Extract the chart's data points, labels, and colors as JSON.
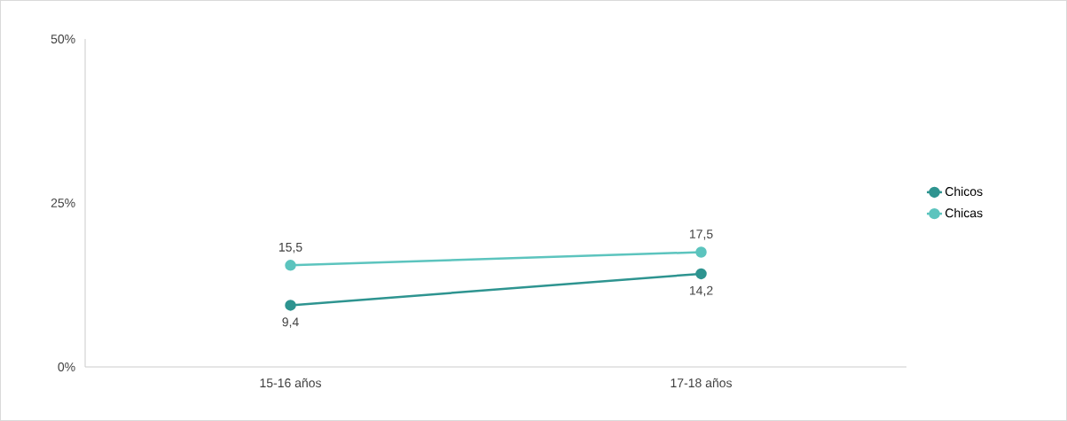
{
  "chart_data": {
    "type": "line",
    "categories": [
      "15-16 años",
      "17-18 años"
    ],
    "series": [
      {
        "name": "Chicos",
        "color": "#2e9490",
        "values": [
          9.4,
          14.2
        ],
        "value_labels": [
          "9,4",
          "14,2"
        ]
      },
      {
        "name": "Chicas",
        "color": "#5cc4be",
        "values": [
          15.5,
          17.5
        ],
        "value_labels": [
          "15,5",
          "17,5"
        ]
      }
    ],
    "ylim": [
      0,
      50
    ],
    "yticks": [
      {
        "value": 0,
        "label": "0%"
      },
      {
        "value": 25,
        "label": "25%"
      },
      {
        "value": 50,
        "label": "50%"
      }
    ],
    "legend": "right",
    "marker": "circle",
    "line_style": "solid",
    "grid": false
  }
}
